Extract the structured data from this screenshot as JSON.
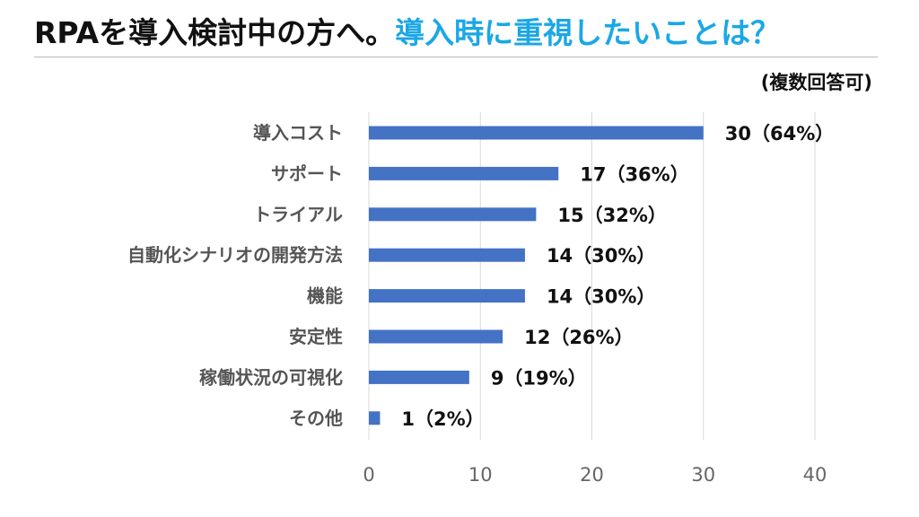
{
  "title": {
    "part1": "RPAを導入検討中の方へ。",
    "part2": "導入時に重視したいことは？"
  },
  "note": "(複数回答可)",
  "colors": {
    "bar": "#4472c4",
    "accent": "#1aa7e6",
    "grid": "#d9d9d9"
  },
  "chart_data": {
    "type": "bar",
    "orientation": "horizontal",
    "categories": [
      "導入コスト",
      "サポート",
      "トライアル",
      "自動化シナリオの開発方法",
      "機能",
      "安定性",
      "稼働状況の可視化",
      "その他"
    ],
    "values": [
      30,
      17,
      15,
      14,
      14,
      12,
      9,
      1
    ],
    "value_labels": [
      "30（64%）",
      "17（36%）",
      "15（32%）",
      "14（30%）",
      "14（30%）",
      "12（26%）",
      "9（19%）",
      "1（2%）"
    ],
    "xlim": [
      0,
      40
    ],
    "xticks": [
      0,
      10,
      20,
      30,
      40
    ],
    "grid": true,
    "legend": "none"
  }
}
